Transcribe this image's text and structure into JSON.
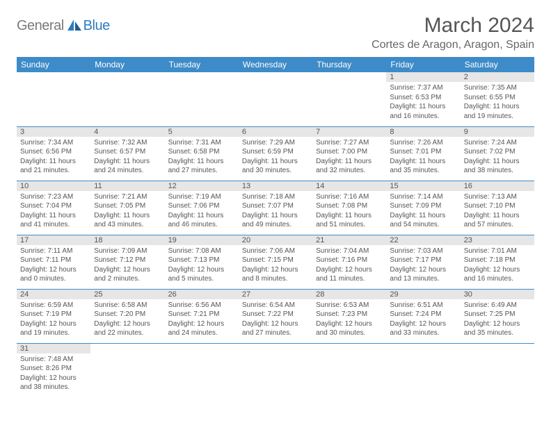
{
  "logo": {
    "general": "General",
    "blue": "Blue"
  },
  "title": "March 2024",
  "location": "Cortes de Aragon, Aragon, Spain",
  "colors": {
    "header_bg": "#3d8bc8",
    "header_text": "#ffffff",
    "date_bar_bg": "#e6e6e6",
    "cell_border": "#3d8bc8",
    "body_text": "#555555",
    "logo_gray": "#7a7a7a",
    "logo_blue": "#2d7cc0",
    "page_bg": "#ffffff"
  },
  "weekdays": [
    "Sunday",
    "Monday",
    "Tuesday",
    "Wednesday",
    "Thursday",
    "Friday",
    "Saturday"
  ],
  "weeks": [
    [
      null,
      null,
      null,
      null,
      null,
      {
        "d": "1",
        "sr": "Sunrise: 7:37 AM",
        "ss": "Sunset: 6:53 PM",
        "dl1": "Daylight: 11 hours",
        "dl2": "and 16 minutes."
      },
      {
        "d": "2",
        "sr": "Sunrise: 7:35 AM",
        "ss": "Sunset: 6:55 PM",
        "dl1": "Daylight: 11 hours",
        "dl2": "and 19 minutes."
      }
    ],
    [
      {
        "d": "3",
        "sr": "Sunrise: 7:34 AM",
        "ss": "Sunset: 6:56 PM",
        "dl1": "Daylight: 11 hours",
        "dl2": "and 21 minutes."
      },
      {
        "d": "4",
        "sr": "Sunrise: 7:32 AM",
        "ss": "Sunset: 6:57 PM",
        "dl1": "Daylight: 11 hours",
        "dl2": "and 24 minutes."
      },
      {
        "d": "5",
        "sr": "Sunrise: 7:31 AM",
        "ss": "Sunset: 6:58 PM",
        "dl1": "Daylight: 11 hours",
        "dl2": "and 27 minutes."
      },
      {
        "d": "6",
        "sr": "Sunrise: 7:29 AM",
        "ss": "Sunset: 6:59 PM",
        "dl1": "Daylight: 11 hours",
        "dl2": "and 30 minutes."
      },
      {
        "d": "7",
        "sr": "Sunrise: 7:27 AM",
        "ss": "Sunset: 7:00 PM",
        "dl1": "Daylight: 11 hours",
        "dl2": "and 32 minutes."
      },
      {
        "d": "8",
        "sr": "Sunrise: 7:26 AM",
        "ss": "Sunset: 7:01 PM",
        "dl1": "Daylight: 11 hours",
        "dl2": "and 35 minutes."
      },
      {
        "d": "9",
        "sr": "Sunrise: 7:24 AM",
        "ss": "Sunset: 7:02 PM",
        "dl1": "Daylight: 11 hours",
        "dl2": "and 38 minutes."
      }
    ],
    [
      {
        "d": "10",
        "sr": "Sunrise: 7:23 AM",
        "ss": "Sunset: 7:04 PM",
        "dl1": "Daylight: 11 hours",
        "dl2": "and 41 minutes."
      },
      {
        "d": "11",
        "sr": "Sunrise: 7:21 AM",
        "ss": "Sunset: 7:05 PM",
        "dl1": "Daylight: 11 hours",
        "dl2": "and 43 minutes."
      },
      {
        "d": "12",
        "sr": "Sunrise: 7:19 AM",
        "ss": "Sunset: 7:06 PM",
        "dl1": "Daylight: 11 hours",
        "dl2": "and 46 minutes."
      },
      {
        "d": "13",
        "sr": "Sunrise: 7:18 AM",
        "ss": "Sunset: 7:07 PM",
        "dl1": "Daylight: 11 hours",
        "dl2": "and 49 minutes."
      },
      {
        "d": "14",
        "sr": "Sunrise: 7:16 AM",
        "ss": "Sunset: 7:08 PM",
        "dl1": "Daylight: 11 hours",
        "dl2": "and 51 minutes."
      },
      {
        "d": "15",
        "sr": "Sunrise: 7:14 AM",
        "ss": "Sunset: 7:09 PM",
        "dl1": "Daylight: 11 hours",
        "dl2": "and 54 minutes."
      },
      {
        "d": "16",
        "sr": "Sunrise: 7:13 AM",
        "ss": "Sunset: 7:10 PM",
        "dl1": "Daylight: 11 hours",
        "dl2": "and 57 minutes."
      }
    ],
    [
      {
        "d": "17",
        "sr": "Sunrise: 7:11 AM",
        "ss": "Sunset: 7:11 PM",
        "dl1": "Daylight: 12 hours",
        "dl2": "and 0 minutes."
      },
      {
        "d": "18",
        "sr": "Sunrise: 7:09 AM",
        "ss": "Sunset: 7:12 PM",
        "dl1": "Daylight: 12 hours",
        "dl2": "and 2 minutes."
      },
      {
        "d": "19",
        "sr": "Sunrise: 7:08 AM",
        "ss": "Sunset: 7:13 PM",
        "dl1": "Daylight: 12 hours",
        "dl2": "and 5 minutes."
      },
      {
        "d": "20",
        "sr": "Sunrise: 7:06 AM",
        "ss": "Sunset: 7:15 PM",
        "dl1": "Daylight: 12 hours",
        "dl2": "and 8 minutes."
      },
      {
        "d": "21",
        "sr": "Sunrise: 7:04 AM",
        "ss": "Sunset: 7:16 PM",
        "dl1": "Daylight: 12 hours",
        "dl2": "and 11 minutes."
      },
      {
        "d": "22",
        "sr": "Sunrise: 7:03 AM",
        "ss": "Sunset: 7:17 PM",
        "dl1": "Daylight: 12 hours",
        "dl2": "and 13 minutes."
      },
      {
        "d": "23",
        "sr": "Sunrise: 7:01 AM",
        "ss": "Sunset: 7:18 PM",
        "dl1": "Daylight: 12 hours",
        "dl2": "and 16 minutes."
      }
    ],
    [
      {
        "d": "24",
        "sr": "Sunrise: 6:59 AM",
        "ss": "Sunset: 7:19 PM",
        "dl1": "Daylight: 12 hours",
        "dl2": "and 19 minutes."
      },
      {
        "d": "25",
        "sr": "Sunrise: 6:58 AM",
        "ss": "Sunset: 7:20 PM",
        "dl1": "Daylight: 12 hours",
        "dl2": "and 22 minutes."
      },
      {
        "d": "26",
        "sr": "Sunrise: 6:56 AM",
        "ss": "Sunset: 7:21 PM",
        "dl1": "Daylight: 12 hours",
        "dl2": "and 24 minutes."
      },
      {
        "d": "27",
        "sr": "Sunrise: 6:54 AM",
        "ss": "Sunset: 7:22 PM",
        "dl1": "Daylight: 12 hours",
        "dl2": "and 27 minutes."
      },
      {
        "d": "28",
        "sr": "Sunrise: 6:53 AM",
        "ss": "Sunset: 7:23 PM",
        "dl1": "Daylight: 12 hours",
        "dl2": "and 30 minutes."
      },
      {
        "d": "29",
        "sr": "Sunrise: 6:51 AM",
        "ss": "Sunset: 7:24 PM",
        "dl1": "Daylight: 12 hours",
        "dl2": "and 33 minutes."
      },
      {
        "d": "30",
        "sr": "Sunrise: 6:49 AM",
        "ss": "Sunset: 7:25 PM",
        "dl1": "Daylight: 12 hours",
        "dl2": "and 35 minutes."
      }
    ],
    [
      {
        "d": "31",
        "sr": "Sunrise: 7:48 AM",
        "ss": "Sunset: 8:26 PM",
        "dl1": "Daylight: 12 hours",
        "dl2": "and 38 minutes."
      },
      null,
      null,
      null,
      null,
      null,
      null
    ]
  ]
}
